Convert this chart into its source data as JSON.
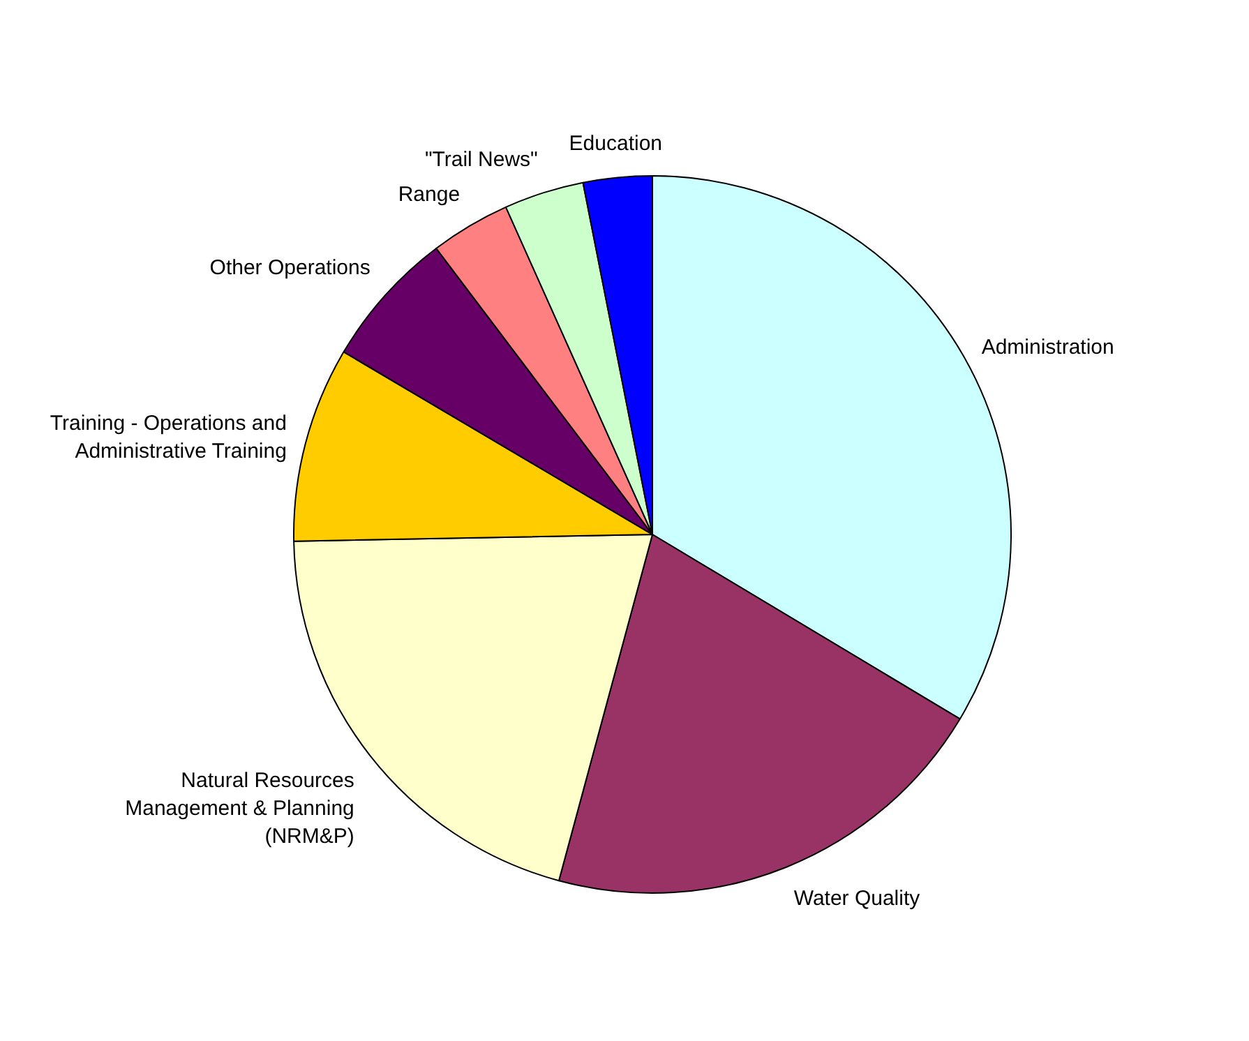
{
  "chart_data": {
    "type": "pie",
    "categories": [
      "Administration",
      "Water Quality",
      "Natural Resources Management & Planning (NRM&P)",
      "Training - Operations and Administrative Training",
      "Other Operations",
      "Range",
      "\"Trail News\"",
      "Education"
    ],
    "values": [
      33.6,
      20.6,
      20.5,
      8.8,
      6.2,
      3.6,
      3.6,
      3.1
    ],
    "colors": [
      "#ccffff",
      "#993366",
      "#ffffcc",
      "#ffcc00",
      "#660066",
      "#ff8080",
      "#ccffcc",
      "#0000ff"
    ],
    "legend": false
  }
}
